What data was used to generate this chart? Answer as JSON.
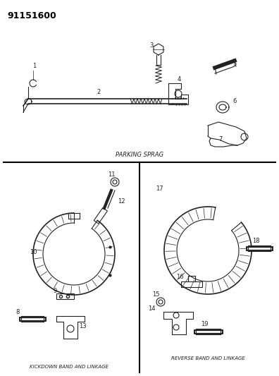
{
  "title": "91151600",
  "background_color": "#ffffff",
  "section1_label": "PARKING SPRAG",
  "section2_label": "KICKDOWN BAND AND LINKAGE",
  "section3_label": "REVERSE BAND AND LINKAGE",
  "fig_width": 3.96,
  "fig_height": 5.33,
  "dpi": 100
}
